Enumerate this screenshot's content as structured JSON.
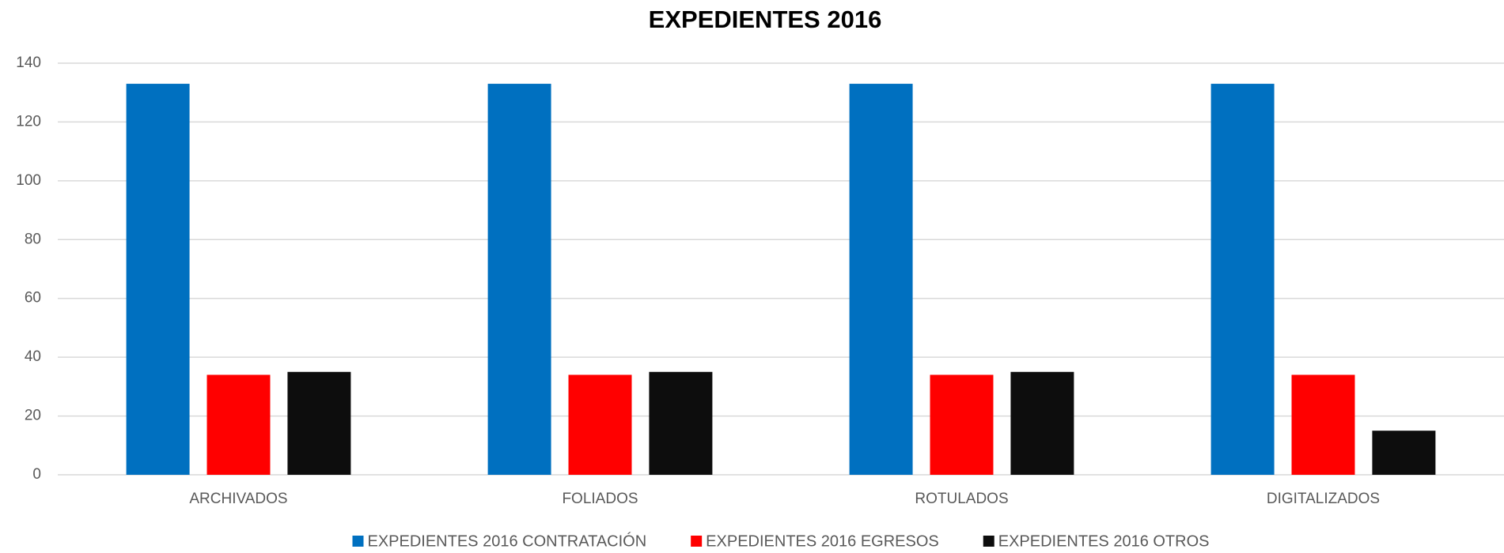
{
  "chart_data": {
    "type": "bar",
    "title": "EXPEDIENTES 2016",
    "categories": [
      "ARCHIVADOS",
      "FOLIADOS",
      "ROTULADOS",
      "DIGITALIZADOS"
    ],
    "series": [
      {
        "name": "EXPEDIENTES 2016 CONTRATACIÓN",
        "color": "#0070c0",
        "values": [
          133,
          133,
          133,
          133
        ]
      },
      {
        "name": "EXPEDIENTES 2016 EGRESOS",
        "color": "#ff0000",
        "values": [
          34,
          34,
          34,
          34
        ]
      },
      {
        "name": "EXPEDIENTES 2016 OTROS",
        "color": "#0d0d0d",
        "values": [
          35,
          35,
          35,
          15
        ]
      }
    ],
    "ylim": [
      0,
      140
    ],
    "yticks": [
      0,
      20,
      40,
      60,
      80,
      100,
      120,
      140
    ],
    "grid": true,
    "legend": "bottom"
  }
}
